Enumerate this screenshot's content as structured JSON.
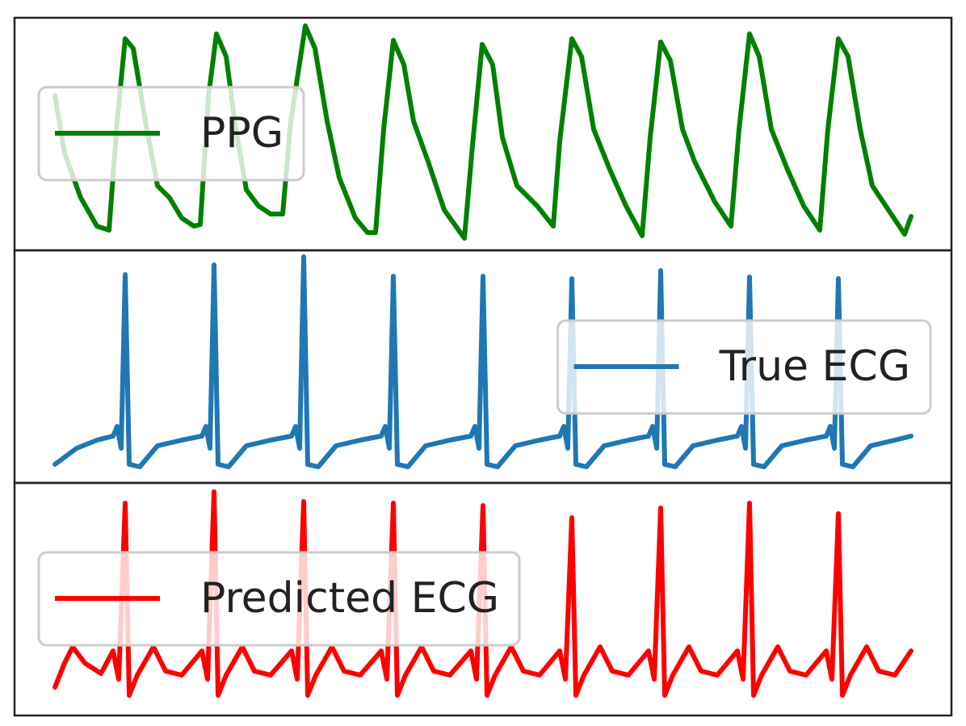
{
  "chart_data": [
    {
      "type": "line",
      "legend": "upper left",
      "xlim": [
        18,
        1178
      ],
      "ylim": [
        0,
        288
      ],
      "x": [
        68,
        80,
        100,
        120,
        135,
        145,
        155,
        165,
        180,
        195,
        210,
        225,
        240,
        248,
        258,
        268,
        280,
        292,
        305,
        320,
        335,
        350,
        360,
        378,
        390,
        405,
        420,
        440,
        455,
        465,
        475,
        487,
        500,
        512,
        530,
        550,
        575,
        585,
        597,
        610,
        622,
        640,
        665,
        685,
        693,
        708,
        720,
        735,
        755,
        775,
        795,
        805,
        818,
        830,
        845,
        860,
        885,
        905,
        915,
        928,
        940,
        955,
        975,
        995,
        1015,
        1025,
        1038,
        1050,
        1065,
        1080,
        1100,
        1120,
        1128
      ],
      "series": [
        {
          "name": "PPG",
          "color": "#008000",
          "values": [
            192,
            120,
            65,
            30,
            25,
            160,
            262,
            250,
            160,
            80,
            65,
            40,
            30,
            32,
            190,
            268,
            240,
            150,
            75,
            55,
            45,
            45,
            160,
            278,
            250,
            160,
            90,
            40,
            22,
            22,
            150,
            260,
            230,
            160,
            110,
            50,
            15,
            130,
            255,
            230,
            140,
            80,
            55,
            30,
            135,
            262,
            240,
            150,
            100,
            55,
            18,
            140,
            258,
            235,
            150,
            110,
            60,
            30,
            150,
            268,
            240,
            150,
            100,
            55,
            25,
            150,
            262,
            240,
            150,
            80,
            50,
            20,
            42
          ]
        }
      ]
    },
    {
      "type": "line",
      "legend": "center right",
      "xlim": [
        18,
        1178
      ],
      "ylim": [
        0,
        288
      ],
      "x": [
        68,
        95,
        120,
        140,
        145,
        150,
        155,
        160,
        173,
        195,
        225,
        250,
        255,
        260,
        265,
        270,
        283,
        305,
        335,
        361,
        366,
        371,
        376,
        381,
        394,
        416,
        446,
        472,
        477,
        482,
        487,
        492,
        505,
        527,
        557,
        583,
        588,
        593,
        598,
        603,
        616,
        638,
        668,
        693,
        698,
        703,
        708,
        713,
        726,
        748,
        778,
        803,
        808,
        813,
        818,
        823,
        836,
        858,
        888,
        913,
        918,
        923,
        928,
        933,
        946,
        968,
        998,
        1023,
        1028,
        1033,
        1038,
        1043,
        1056,
        1078,
        1108,
        1128
      ],
      "series": [
        {
          "name": "True ECG",
          "color": "#1f77b4",
          "values": [
            23,
            43,
            53,
            58,
            70,
            43,
            258,
            23,
            20,
            46,
            53,
            58,
            70,
            43,
            270,
            23,
            20,
            46,
            53,
            58,
            70,
            43,
            280,
            23,
            20,
            46,
            53,
            58,
            70,
            43,
            256,
            23,
            20,
            46,
            53,
            58,
            70,
            43,
            256,
            23,
            20,
            46,
            53,
            58,
            70,
            43,
            253,
            23,
            20,
            46,
            53,
            58,
            70,
            43,
            263,
            23,
            20,
            46,
            53,
            58,
            70,
            43,
            255,
            23,
            20,
            46,
            53,
            58,
            70,
            43,
            253,
            23,
            20,
            46,
            53,
            58
          ]
        }
      ]
    },
    {
      "type": "line",
      "legend": "upper left",
      "xlim": [
        18,
        1178
      ],
      "ylim": [
        0,
        288
      ],
      "x": [
        68,
        80,
        90,
        105,
        125,
        140,
        147,
        155,
        160,
        170,
        190,
        205,
        225,
        250,
        257,
        265,
        270,
        280,
        300,
        315,
        335,
        361,
        368,
        376,
        381,
        391,
        411,
        426,
        446,
        472,
        479,
        487,
        492,
        502,
        522,
        537,
        557,
        583,
        590,
        598,
        603,
        613,
        633,
        648,
        668,
        693,
        700,
        708,
        713,
        723,
        743,
        758,
        778,
        803,
        810,
        818,
        823,
        833,
        853,
        868,
        888,
        913,
        920,
        928,
        933,
        943,
        963,
        978,
        998,
        1023,
        1030,
        1038,
        1043,
        1053,
        1073,
        1088,
        1108,
        1128
      ],
      "series": [
        {
          "name": "Predicted ECG",
          "color": "#ff0000",
          "values": [
            35,
            65,
            85,
            65,
            52,
            80,
            45,
            263,
            25,
            50,
            85,
            55,
            50,
            80,
            45,
            277,
            25,
            50,
            85,
            55,
            50,
            80,
            45,
            265,
            25,
            50,
            85,
            55,
            50,
            80,
            45,
            263,
            25,
            50,
            85,
            55,
            50,
            80,
            45,
            260,
            25,
            50,
            85,
            55,
            50,
            80,
            45,
            245,
            25,
            50,
            85,
            55,
            50,
            80,
            45,
            257,
            25,
            50,
            85,
            55,
            50,
            80,
            45,
            263,
            25,
            50,
            85,
            55,
            50,
            80,
            45,
            250,
            25,
            50,
            85,
            55,
            50,
            80
          ]
        }
      ]
    }
  ]
}
